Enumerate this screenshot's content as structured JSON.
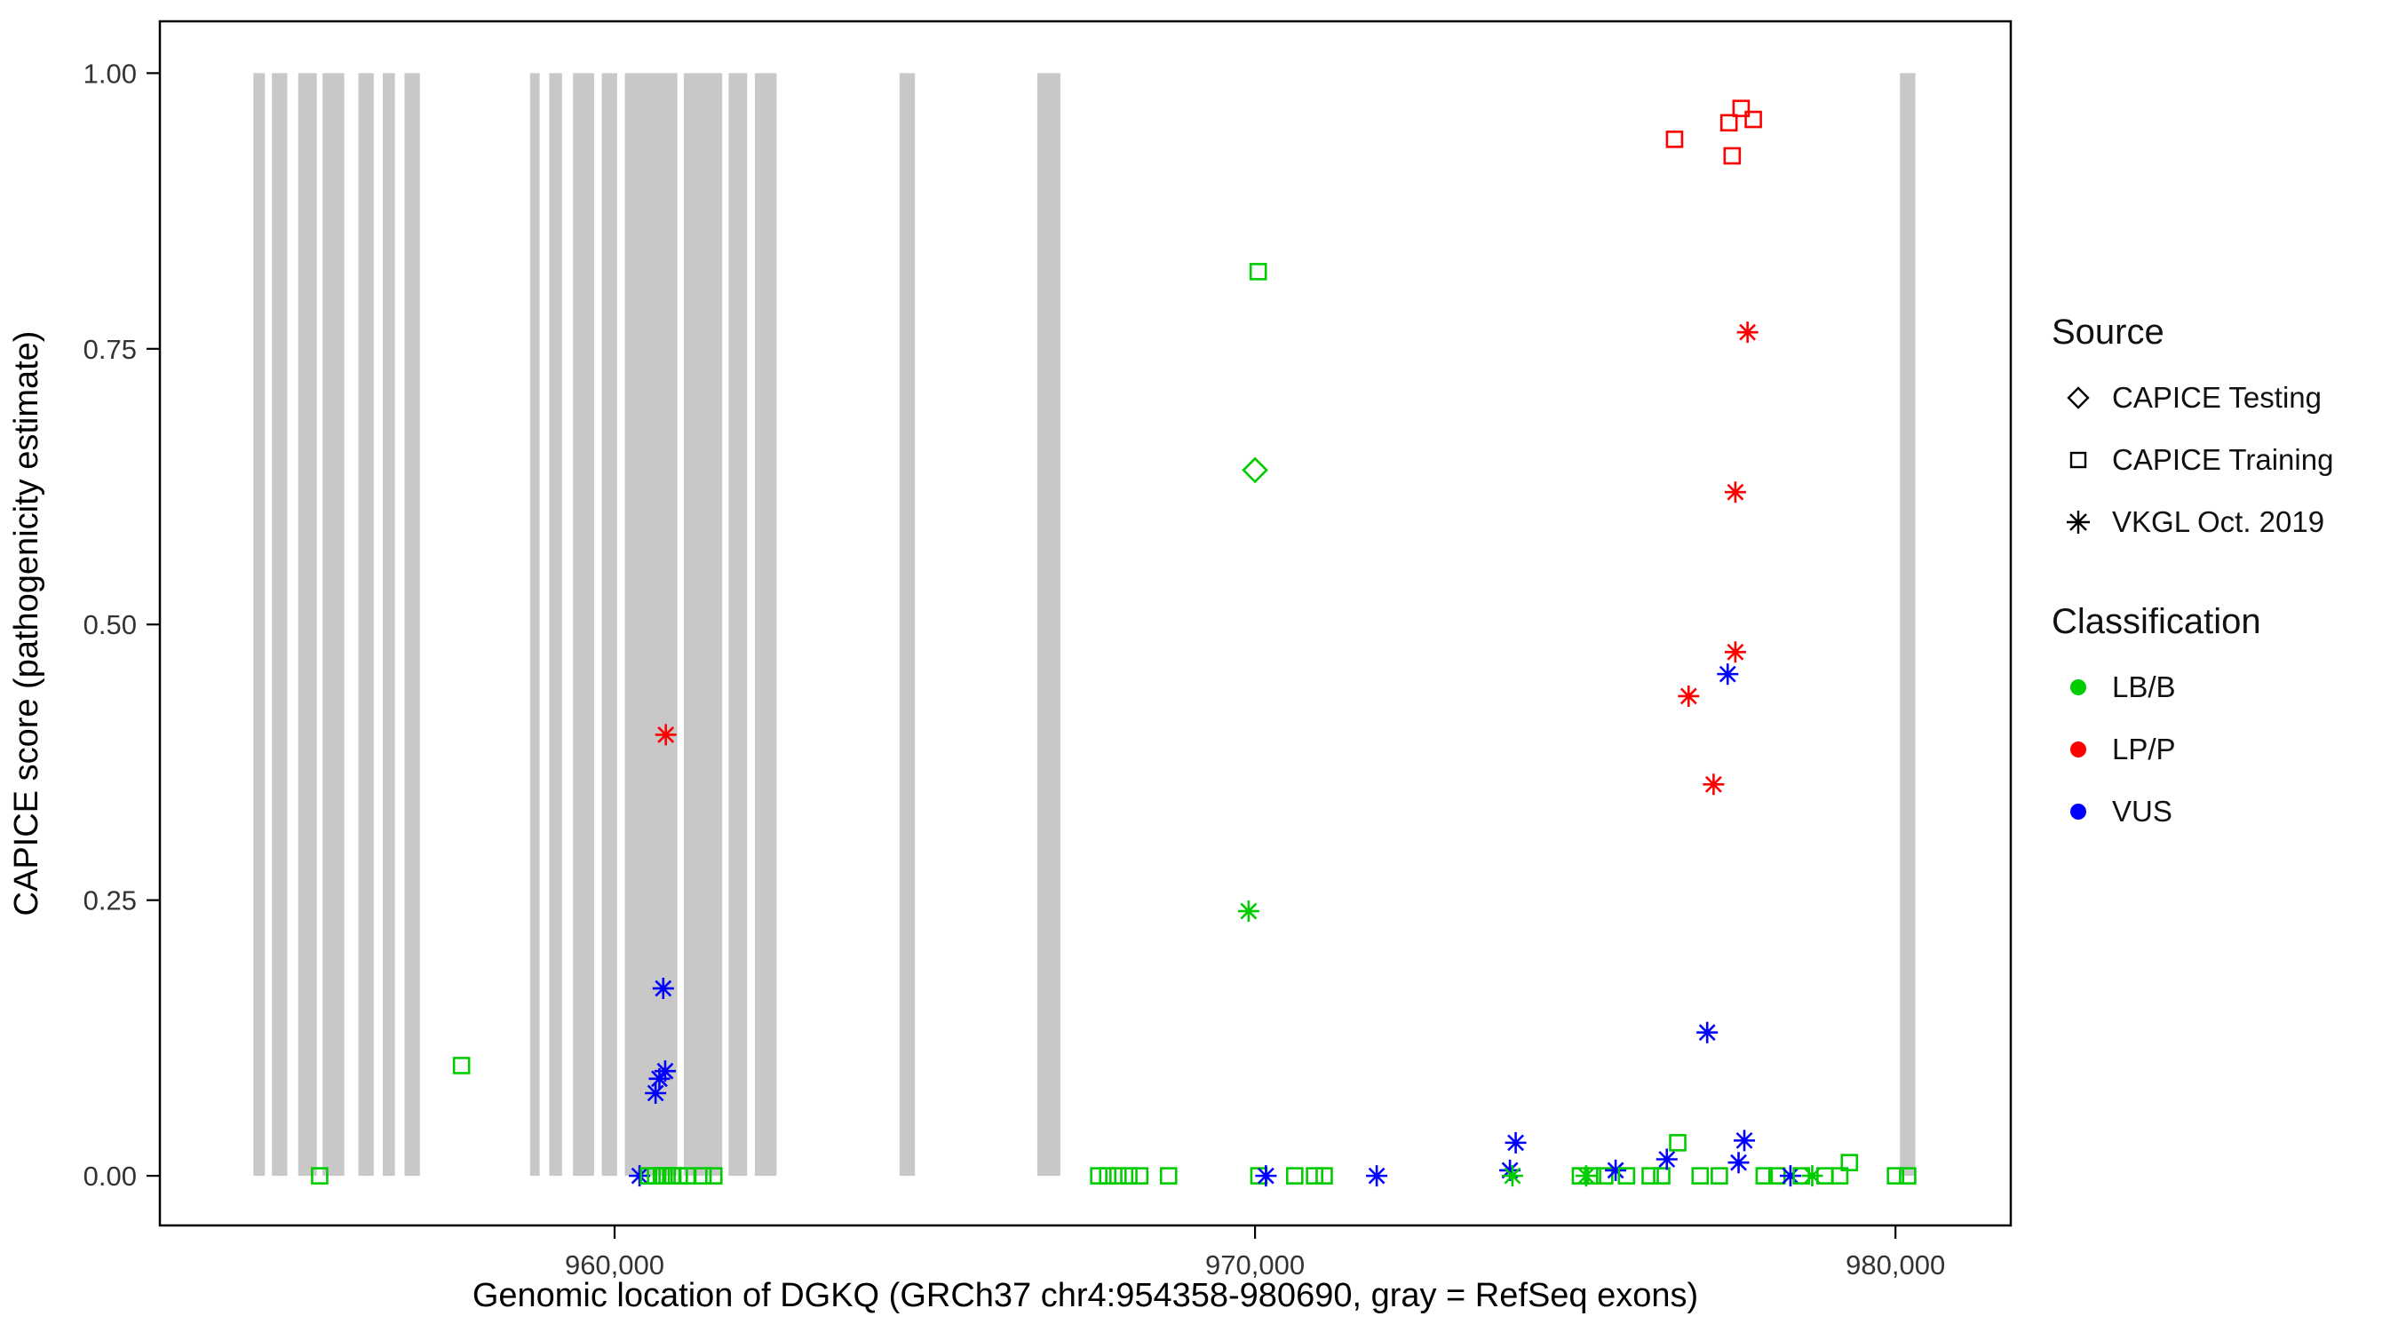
{
  "chart_data": {
    "type": "scatter",
    "title": "",
    "xlabel": "Genomic location of DGKQ (GRCh37 chr4:954358-980690, gray = RefSeq exons)",
    "ylabel": "CAPICE score (pathogenicity estimate)",
    "xlim": [
      952900,
      981800
    ],
    "ylim": [
      -0.045,
      1.047
    ],
    "grid": false,
    "x_ticks": [
      {
        "value": 960000,
        "label": "960,000"
      },
      {
        "value": 970000,
        "label": "970,000"
      },
      {
        "value": 980000,
        "label": "980,000"
      }
    ],
    "y_ticks": [
      {
        "value": 0.0,
        "label": "0.00"
      },
      {
        "value": 0.25,
        "label": "0.25"
      },
      {
        "value": 0.5,
        "label": "0.50"
      },
      {
        "value": 0.75,
        "label": "0.75"
      },
      {
        "value": 1.0,
        "label": "1.00"
      }
    ],
    "colors": {
      "lbb": "#00CC00",
      "lpp": "#FF0000",
      "vus": "#0000FF",
      "exon": "#C8C8C8",
      "axis": "#000000",
      "tick_label": "#333333"
    },
    "exons": [
      [
        954360,
        954540
      ],
      [
        954650,
        954890
      ],
      [
        955060,
        955350
      ],
      [
        955440,
        955780
      ],
      [
        956000,
        956240
      ],
      [
        956380,
        956570
      ],
      [
        956720,
        956960
      ],
      [
        958680,
        958830
      ],
      [
        958980,
        959180
      ],
      [
        959350,
        959680
      ],
      [
        959800,
        960040
      ],
      [
        960160,
        960980
      ],
      [
        961080,
        961680
      ],
      [
        961780,
        962070
      ],
      [
        962190,
        962530
      ],
      [
        964450,
        964690
      ],
      [
        966600,
        966960
      ],
      [
        980070,
        980310
      ]
    ],
    "points": [
      {
        "x": 955395,
        "y": 0,
        "src": "training",
        "cls": "lbb"
      },
      {
        "x": 957610,
        "y": 0.1,
        "src": "training",
        "cls": "lbb"
      },
      {
        "x": 960390,
        "y": 0,
        "src": "vkgl",
        "cls": "vus"
      },
      {
        "x": 960530,
        "y": 0,
        "src": "training",
        "cls": "lbb"
      },
      {
        "x": 960640,
        "y": 0,
        "src": "training",
        "cls": "lbb"
      },
      {
        "x": 960730,
        "y": 0,
        "src": "training",
        "cls": "lbb"
      },
      {
        "x": 960820,
        "y": 0,
        "src": "training",
        "cls": "lbb"
      },
      {
        "x": 960910,
        "y": 0,
        "src": "training",
        "cls": "lbb"
      },
      {
        "x": 961010,
        "y": 0,
        "src": "training",
        "cls": "lbb"
      },
      {
        "x": 961130,
        "y": 0,
        "src": "training",
        "cls": "lbb"
      },
      {
        "x": 961380,
        "y": 0,
        "src": "training",
        "cls": "lbb"
      },
      {
        "x": 961550,
        "y": 0,
        "src": "training",
        "cls": "lbb"
      },
      {
        "x": 960640,
        "y": 0.075,
        "src": "vkgl",
        "cls": "vus"
      },
      {
        "x": 960700,
        "y": 0.088,
        "src": "vkgl",
        "cls": "vus"
      },
      {
        "x": 960790,
        "y": 0.095,
        "src": "vkgl",
        "cls": "vus"
      },
      {
        "x": 960760,
        "y": 0.17,
        "src": "vkgl",
        "cls": "vus"
      },
      {
        "x": 960800,
        "y": 0.4,
        "src": "vkgl",
        "cls": "lpp"
      },
      {
        "x": 967560,
        "y": 0,
        "src": "training",
        "cls": "lbb"
      },
      {
        "x": 967700,
        "y": 0,
        "src": "training",
        "cls": "lbb"
      },
      {
        "x": 967860,
        "y": 0,
        "src": "training",
        "cls": "lbb"
      },
      {
        "x": 968030,
        "y": 0,
        "src": "training",
        "cls": "lbb"
      },
      {
        "x": 968200,
        "y": 0,
        "src": "training",
        "cls": "lbb"
      },
      {
        "x": 968650,
        "y": 0,
        "src": "training",
        "cls": "lbb"
      },
      {
        "x": 969900,
        "y": 0.24,
        "src": "vkgl",
        "cls": "lbb"
      },
      {
        "x": 970000,
        "y": 0.64,
        "src": "testing",
        "cls": "lbb"
      },
      {
        "x": 970050,
        "y": 0.82,
        "src": "training",
        "cls": "lbb"
      },
      {
        "x": 970060,
        "y": 0,
        "src": "training",
        "cls": "lbb"
      },
      {
        "x": 970170,
        "y": 0,
        "src": "vkgl",
        "cls": "vus"
      },
      {
        "x": 970620,
        "y": 0,
        "src": "training",
        "cls": "lbb"
      },
      {
        "x": 970930,
        "y": 0,
        "src": "training",
        "cls": "lbb"
      },
      {
        "x": 971080,
        "y": 0,
        "src": "training",
        "cls": "lbb"
      },
      {
        "x": 971900,
        "y": 0,
        "src": "vkgl",
        "cls": "vus"
      },
      {
        "x": 973980,
        "y": 0.005,
        "src": "vkgl",
        "cls": "vus"
      },
      {
        "x": 974070,
        "y": 0.03,
        "src": "vkgl",
        "cls": "vus"
      },
      {
        "x": 974020,
        "y": 0,
        "src": "vkgl",
        "cls": "lbb"
      },
      {
        "x": 975080,
        "y": 0,
        "src": "training",
        "cls": "lbb"
      },
      {
        "x": 975170,
        "y": 0,
        "src": "vkgl",
        "cls": "lbb"
      },
      {
        "x": 975270,
        "y": 0,
        "src": "training",
        "cls": "lbb"
      },
      {
        "x": 975460,
        "y": 0,
        "src": "training",
        "cls": "lbb"
      },
      {
        "x": 975630,
        "y": 0.005,
        "src": "vkgl",
        "cls": "vus"
      },
      {
        "x": 975800,
        "y": 0,
        "src": "training",
        "cls": "lbb"
      },
      {
        "x": 976170,
        "y": 0,
        "src": "training",
        "cls": "lbb"
      },
      {
        "x": 976350,
        "y": 0,
        "src": "training",
        "cls": "lbb"
      },
      {
        "x": 976430,
        "y": 0.015,
        "src": "vkgl",
        "cls": "vus"
      },
      {
        "x": 976600,
        "y": 0.03,
        "src": "training",
        "cls": "lbb"
      },
      {
        "x": 976550,
        "y": 0.94,
        "src": "training",
        "cls": "lpp"
      },
      {
        "x": 976770,
        "y": 0.435,
        "src": "vkgl",
        "cls": "lpp"
      },
      {
        "x": 976950,
        "y": 0,
        "src": "training",
        "cls": "lbb"
      },
      {
        "x": 977060,
        "y": 0.13,
        "src": "vkgl",
        "cls": "vus"
      },
      {
        "x": 977160,
        "y": 0.355,
        "src": "vkgl",
        "cls": "lpp"
      },
      {
        "x": 977250,
        "y": 0,
        "src": "training",
        "cls": "lbb"
      },
      {
        "x": 977380,
        "y": 0.455,
        "src": "vkgl",
        "cls": "vus"
      },
      {
        "x": 977400,
        "y": 0.955,
        "src": "training",
        "cls": "lpp"
      },
      {
        "x": 977450,
        "y": 0.925,
        "src": "training",
        "cls": "lpp"
      },
      {
        "x": 977500,
        "y": 0.62,
        "src": "vkgl",
        "cls": "lpp"
      },
      {
        "x": 977500,
        "y": 0.475,
        "src": "vkgl",
        "cls": "lpp"
      },
      {
        "x": 977550,
        "y": 0.012,
        "src": "vkgl",
        "cls": "vus"
      },
      {
        "x": 977590,
        "y": 0.968,
        "src": "training",
        "cls": "lpp"
      },
      {
        "x": 977640,
        "y": 0.032,
        "src": "vkgl",
        "cls": "vus"
      },
      {
        "x": 977690,
        "y": 0.765,
        "src": "vkgl",
        "cls": "lpp"
      },
      {
        "x": 977780,
        "y": 0.958,
        "src": "training",
        "cls": "lpp"
      },
      {
        "x": 977950,
        "y": 0,
        "src": "training",
        "cls": "lbb"
      },
      {
        "x": 978150,
        "y": 0,
        "src": "training",
        "cls": "lbb"
      },
      {
        "x": 978360,
        "y": 0,
        "src": "vkgl",
        "cls": "vus"
      },
      {
        "x": 978530,
        "y": 0,
        "src": "training",
        "cls": "lbb"
      },
      {
        "x": 978700,
        "y": 0,
        "src": "vkgl",
        "cls": "lbb"
      },
      {
        "x": 978900,
        "y": 0,
        "src": "training",
        "cls": "lbb"
      },
      {
        "x": 979130,
        "y": 0,
        "src": "training",
        "cls": "lbb"
      },
      {
        "x": 979280,
        "y": 0.012,
        "src": "training",
        "cls": "lbb"
      },
      {
        "x": 980000,
        "y": 0,
        "src": "training",
        "cls": "lbb"
      },
      {
        "x": 980190,
        "y": 0,
        "src": "training",
        "cls": "lbb"
      }
    ],
    "legend": {
      "source_title": "Source",
      "source_items": [
        {
          "label": "CAPICE Testing",
          "shape": "diamond"
        },
        {
          "label": "CAPICE Training",
          "shape": "square"
        },
        {
          "label": "VKGL Oct. 2019",
          "shape": "asterisk"
        }
      ],
      "classification_title": "Classification",
      "classification_items": [
        {
          "label": "LB/B",
          "color_key": "lbb"
        },
        {
          "label": "LP/P",
          "color_key": "lpp"
        },
        {
          "label": "VUS",
          "color_key": "vus"
        }
      ],
      "position": "right"
    }
  }
}
